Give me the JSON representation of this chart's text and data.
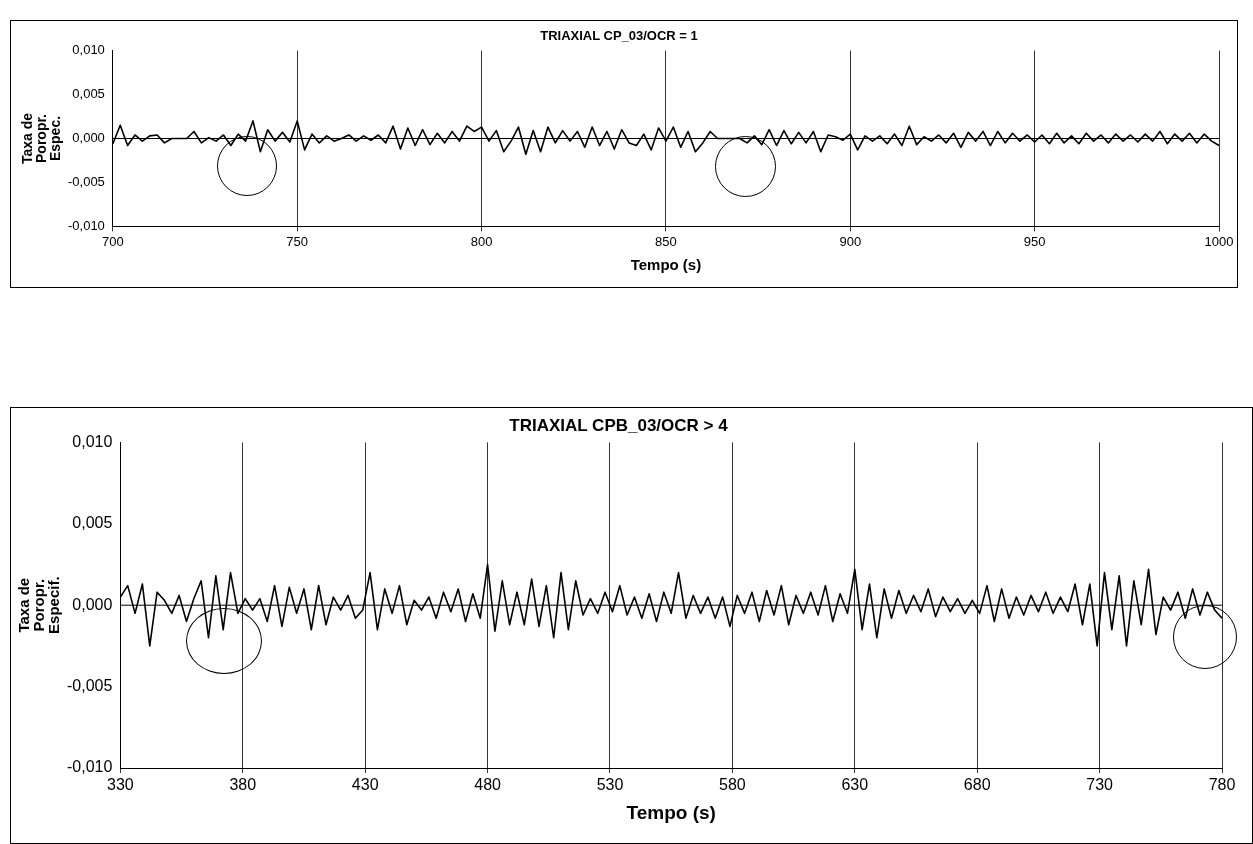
{
  "chart_data": [
    {
      "type": "line",
      "title": "TRIAXIAL CP_03/OCR = 1",
      "xlabel": "Tempo (s)",
      "ylabel": "Taxa de\nPoropr.\nEspec.",
      "xlim": [
        700,
        1000
      ],
      "xticks": [
        700,
        750,
        800,
        850,
        900,
        950,
        1000
      ],
      "ylim": [
        -0.01,
        0.01
      ],
      "yticks": [
        {
          "value": -0.01,
          "label": "-0,010"
        },
        {
          "value": -0.005,
          "label": "-0,005"
        },
        {
          "value": 0,
          "label": "0,000"
        },
        {
          "value": 0.005,
          "label": "0,005"
        },
        {
          "value": 0.01,
          "label": "0,010"
        }
      ],
      "grid": "x",
      "legend": false,
      "marker": "none",
      "line_style": "solid",
      "ref_lines": [
        {
          "axis": "y",
          "value": 0,
          "color": "#000000"
        }
      ],
      "x": [
        700,
        702,
        704,
        706,
        708,
        710,
        712,
        714,
        716,
        718,
        720,
        722,
        724,
        726,
        728,
        730,
        732,
        734,
        736,
        738,
        740,
        742,
        744,
        746,
        748,
        750,
        752,
        754,
        756,
        758,
        760,
        762,
        764,
        766,
        768,
        770,
        772,
        774,
        776,
        778,
        780,
        782,
        784,
        786,
        788,
        790,
        792,
        794,
        796,
        798,
        800,
        802,
        804,
        806,
        808,
        810,
        812,
        814,
        816,
        818,
        820,
        822,
        824,
        826,
        828,
        830,
        832,
        834,
        836,
        838,
        840,
        842,
        844,
        846,
        848,
        850,
        852,
        854,
        856,
        858,
        860,
        862,
        864,
        866,
        868,
        870,
        872,
        874,
        876,
        878,
        880,
        882,
        884,
        886,
        888,
        890,
        892,
        894,
        896,
        898,
        900,
        902,
        904,
        906,
        908,
        910,
        912,
        914,
        916,
        918,
        920,
        922,
        924,
        926,
        928,
        930,
        932,
        934,
        936,
        938,
        940,
        942,
        944,
        946,
        948,
        950,
        952,
        954,
        956,
        958,
        960,
        962,
        964,
        966,
        968,
        970,
        972,
        974,
        976,
        978,
        980,
        982,
        984,
        986,
        988,
        990,
        992,
        994,
        996,
        998,
        1000
      ],
      "series": [
        {
          "color": "#000000",
          "values": [
            -0.0006,
            0.0015,
            -0.0008,
            0.0004,
            -0.0003,
            0.0003,
            0.0004,
            -0.0005,
            0,
            0,
            0,
            0.0008,
            -0.0005,
            0.0001,
            -0.0003,
            0.0004,
            -0.0008,
            0.0005,
            -0.0003,
            0.002,
            -0.0015,
            0.001,
            -0.0003,
            0.0007,
            -0.0004,
            0.002,
            -0.0013,
            0.0005,
            -0.0005,
            0.0003,
            -0.0003,
            0,
            0.0004,
            -0.0003,
            0.0003,
            -0.0002,
            0.0004,
            -0.0005,
            0.0014,
            -0.0012,
            0.0012,
            -0.0008,
            0.001,
            -0.0007,
            0.0006,
            -0.0005,
            0.0008,
            -0.0003,
            0.0014,
            0.0008,
            0.0013,
            -0.0003,
            0.0009,
            -0.0015,
            -0.0003,
            0.0013,
            -0.0018,
            0.0009,
            -0.0015,
            0.0013,
            -0.0005,
            0.0009,
            -0.0003,
            0.0008,
            -0.001,
            0.0013,
            -0.0008,
            0.0008,
            -0.0012,
            0.001,
            -0.0005,
            -0.0008,
            0.0005,
            -0.0013,
            0.0012,
            -0.0003,
            0.0013,
            -0.001,
            0.0008,
            -0.0015,
            -0.0005,
            0.0008,
            0,
            0,
            0,
            0,
            -0.0005,
            0.0003,
            -0.0007,
            0.001,
            -0.0008,
            0.0009,
            -0.0006,
            0.0007,
            -0.0005,
            0.0008,
            -0.0015,
            0.0004,
            0.0002,
            -0.0002,
            0.0005,
            -0.0013,
            0.0003,
            -0.0003,
            0.0003,
            -0.0006,
            0.0005,
            -0.0008,
            0.0014,
            -0.0007,
            0.0002,
            -0.0003,
            0.0004,
            -0.0005,
            0.0006,
            -0.001,
            0.0007,
            -0.0003,
            0.0008,
            -0.0008,
            0.0008,
            -0.0005,
            0.0006,
            -0.0003,
            0.0004,
            -0.0004,
            0.0004,
            -0.0006,
            0.0006,
            -0.0005,
            0.0003,
            -0.0006,
            0.0006,
            -0.0003,
            0.0004,
            -0.0005,
            0.0005,
            -0.0003,
            0.0004,
            -0.0004,
            0.0005,
            -0.0003,
            0.0008,
            -0.0006,
            0.0005,
            -0.0003,
            0.0006,
            -0.0005,
            0.0005,
            -0.0003,
            -0.0008
          ]
        }
      ]
    },
    {
      "type": "line",
      "title": "TRIAXIAL CPB_03/OCR > 4",
      "xlabel": "Tempo (s)",
      "ylabel": "Taxa de\nPoropr.\nEspecif.",
      "xlim": [
        330,
        780
      ],
      "xticks": [
        330,
        380,
        430,
        480,
        530,
        580,
        630,
        680,
        730,
        780
      ],
      "ylim": [
        -0.01,
        0.01
      ],
      "yticks": [
        {
          "value": -0.01,
          "label": "-0,010"
        },
        {
          "value": -0.005,
          "label": "-0,005"
        },
        {
          "value": 0,
          "label": "0,000"
        },
        {
          "value": 0.005,
          "label": "0,005"
        },
        {
          "value": 0.01,
          "label": "0,010"
        }
      ],
      "grid": "x",
      "legend": false,
      "marker": "none",
      "line_style": "solid",
      "ref_lines": [
        {
          "axis": "y",
          "value": 0,
          "color": "#000000"
        }
      ],
      "x": [
        330,
        333,
        336,
        339,
        342,
        345,
        348,
        351,
        354,
        357,
        360,
        363,
        366,
        369,
        372,
        375,
        378,
        381,
        384,
        387,
        390,
        393,
        396,
        399,
        402,
        405,
        408,
        411,
        414,
        417,
        420,
        423,
        426,
        429,
        432,
        435,
        438,
        441,
        444,
        447,
        450,
        453,
        456,
        459,
        462,
        465,
        468,
        471,
        474,
        477,
        480,
        483,
        486,
        489,
        492,
        495,
        498,
        501,
        504,
        507,
        510,
        513,
        516,
        519,
        522,
        525,
        528,
        531,
        534,
        537,
        540,
        543,
        546,
        549,
        552,
        555,
        558,
        561,
        564,
        567,
        570,
        573,
        576,
        579,
        582,
        585,
        588,
        591,
        594,
        597,
        600,
        603,
        606,
        609,
        612,
        615,
        618,
        621,
        624,
        627,
        630,
        633,
        636,
        639,
        642,
        645,
        648,
        651,
        654,
        657,
        660,
        663,
        666,
        669,
        672,
        675,
        678,
        681,
        684,
        687,
        690,
        693,
        696,
        699,
        702,
        705,
        708,
        711,
        714,
        717,
        720,
        723,
        726,
        729,
        732,
        735,
        738,
        741,
        744,
        747,
        750,
        753,
        756,
        759,
        762,
        765,
        768,
        771,
        774,
        777,
        780
      ],
      "series": [
        {
          "color": "#000000",
          "values": [
            0.0005,
            0.0012,
            -0.0005,
            0.0013,
            -0.0025,
            0.0008,
            0.0003,
            -0.0005,
            0.0006,
            -0.001,
            0.0004,
            0.0015,
            -0.002,
            0.0018,
            -0.0015,
            0.002,
            -0.0005,
            0.0004,
            -0.0003,
            0.0004,
            -0.001,
            0.0012,
            -0.0013,
            0.0011,
            -0.0005,
            0.001,
            -0.0015,
            0.0012,
            -0.0012,
            0.0005,
            -0.0003,
            0.0006,
            -0.0008,
            -0.0003,
            0.002,
            -0.0015,
            0.001,
            -0.0005,
            0.0012,
            -0.0012,
            0.0003,
            -0.0003,
            0.0005,
            -0.0008,
            0.0008,
            -0.0004,
            0.001,
            -0.001,
            0.0007,
            -0.0008,
            0.0025,
            -0.0016,
            0.0015,
            -0.0012,
            0.0008,
            -0.0012,
            0.0016,
            -0.0013,
            0.0012,
            -0.002,
            0.002,
            -0.0015,
            0.0015,
            -0.0006,
            0.0004,
            -0.0005,
            0.0008,
            -0.0004,
            0.0012,
            -0.0006,
            0.0005,
            -0.0008,
            0.0007,
            -0.001,
            0.0008,
            -0.0005,
            0.002,
            -0.0008,
            0.0006,
            -0.0005,
            0.0005,
            -0.0008,
            0.0005,
            -0.0013,
            0.0006,
            -0.0005,
            0.0008,
            -0.001,
            0.0009,
            -0.0006,
            0.0012,
            -0.0012,
            0.0006,
            -0.0005,
            0.0008,
            -0.0006,
            0.0012,
            -0.001,
            0.0007,
            -0.0005,
            0.0022,
            -0.0015,
            0.0013,
            -0.002,
            0.001,
            -0.0008,
            0.0009,
            -0.0005,
            0.0006,
            -0.0004,
            0.001,
            -0.0007,
            0.0005,
            -0.0004,
            0.0004,
            -0.0005,
            0.0003,
            -0.0005,
            0.0012,
            -0.001,
            0.001,
            -0.0008,
            0.0005,
            -0.0006,
            0.0006,
            -0.0004,
            0.0008,
            -0.0005,
            0.0005,
            -0.0004,
            0.0013,
            -0.0012,
            0.0013,
            -0.0025,
            0.002,
            -0.0015,
            0.0018,
            -0.0025,
            0.0015,
            -0.0012,
            0.0022,
            -0.0018,
            0.0005,
            -0.0003,
            0.0008,
            -0.0008,
            0.001,
            -0.0006,
            0.0008,
            -0.0003,
            -0.0008
          ]
        }
      ]
    }
  ]
}
